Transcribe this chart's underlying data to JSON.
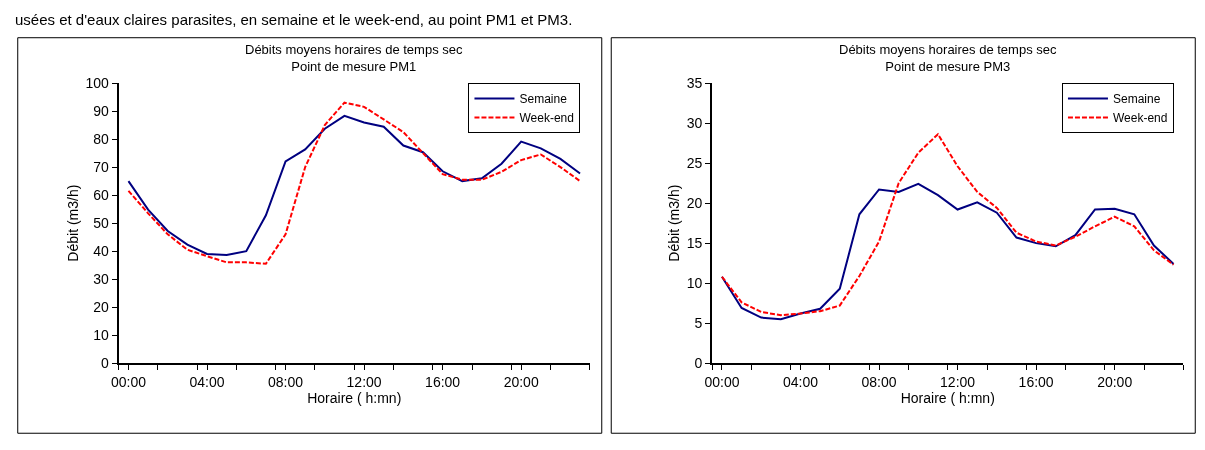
{
  "chart_data": [
    {
      "type": "line",
      "title": "Débits moyens horaires de temps sec\nPoint de mesure PM1",
      "xlabel": "Horaire ( h:mn)",
      "ylabel": "Débit (m3/h)",
      "annotations": [
        "usées et d'eaux claires parasites, en semaine et le week-end, au point PM1 et PM3."
      ],
      "x": [
        0,
        1,
        2,
        3,
        4,
        5,
        6,
        7,
        8,
        9,
        10,
        11,
        12,
        13,
        14,
        15,
        16,
        17,
        18,
        19,
        20,
        21,
        22,
        23
      ],
      "series": [
        {
          "name": "Semaine",
          "color": "#000080",
          "line_style": "solid",
          "values": [
            65,
            54.8,
            47.2,
            42.3,
            39,
            38.6,
            40,
            52.8,
            72,
            76.3,
            83.7,
            88.3,
            85.9,
            84.4,
            77.7,
            75.3,
            68.5,
            65,
            66,
            71.2,
            79.1,
            76.7,
            72.9,
            67.7
          ]
        },
        {
          "name": "Week-end",
          "color": "#ff0000",
          "line_style": "dashed",
          "values": [
            61.5,
            53.5,
            46,
            40.5,
            38.2,
            36,
            36,
            35.5,
            46,
            70,
            85,
            93,
            91.5,
            87,
            82.5,
            75,
            67.5,
            65.5,
            65.5,
            68.3,
            72.5,
            74.5,
            70,
            65
          ]
        }
      ],
      "xlim": [
        -0.5,
        23.5
      ],
      "xticks": [
        {
          "value": -0.5,
          "label": null
        },
        {
          "value": 0,
          "label": "00:00"
        },
        {
          "value": 1.5,
          "label": null
        },
        {
          "value": 3.5,
          "label": null
        },
        {
          "value": 4,
          "label": "04:00"
        },
        {
          "value": 5.5,
          "label": null
        },
        {
          "value": 7.5,
          "label": null
        },
        {
          "value": 8,
          "label": "08:00"
        },
        {
          "value": 9.5,
          "label": null
        },
        {
          "value": 11.5,
          "label": null
        },
        {
          "value": 12,
          "label": "12:00"
        },
        {
          "value": 13.5,
          "label": null
        },
        {
          "value": 15.5,
          "label": null
        },
        {
          "value": 16,
          "label": "16:00"
        },
        {
          "value": 17.5,
          "label": null
        },
        {
          "value": 19.5,
          "label": null
        },
        {
          "value": 20,
          "label": "20:00"
        },
        {
          "value": 21.5,
          "label": null
        },
        {
          "value": 23.5,
          "label": null
        }
      ],
      "ylim": [
        0,
        100
      ],
      "yticks": [
        0,
        10,
        20,
        30,
        40,
        50,
        60,
        70,
        80,
        90,
        100
      ],
      "grid": false,
      "legend": "top right",
      "marker": "none"
    },
    {
      "type": "line",
      "title": "Débits moyens horaires de temps sec\nPoint de mesure PM3",
      "xlabel": "Horaire ( h:mn)",
      "ylabel": "Débit (m3/h)",
      "x": [
        0,
        1,
        2,
        3,
        4,
        5,
        6,
        7,
        8,
        9,
        10,
        11,
        12,
        13,
        14,
        15,
        16,
        17,
        18,
        19,
        20,
        21,
        22,
        23
      ],
      "series": [
        {
          "name": "Semaine",
          "color": "#000080",
          "line_style": "solid",
          "values": [
            10.8,
            6.9,
            5.7,
            5.5,
            6.2,
            6.8,
            9.3,
            18.6,
            21.7,
            21.4,
            22.4,
            21.0,
            19.2,
            20.1,
            18.8,
            15.7,
            15.0,
            14.6,
            16.0,
            19.2,
            19.3,
            18.6,
            14.7,
            12.4
          ]
        },
        {
          "name": "Week-end",
          "color": "#ff0000",
          "line_style": "dashed",
          "values": [
            10.8,
            7.6,
            6.4,
            6.0,
            6.2,
            6.5,
            7.2,
            10.9,
            15.2,
            22.5,
            26.3,
            28.6,
            24.6,
            21.4,
            19.4,
            16.3,
            15.2,
            14.7,
            15.8,
            17.1,
            18.3,
            17.1,
            14.1,
            12.3
          ]
        }
      ],
      "xlim": [
        -0.5,
        23.5
      ],
      "xticks": [
        {
          "value": -0.5,
          "label": null
        },
        {
          "value": 0,
          "label": "00:00"
        },
        {
          "value": 1.5,
          "label": null
        },
        {
          "value": 3.5,
          "label": null
        },
        {
          "value": 4,
          "label": "04:00"
        },
        {
          "value": 5.5,
          "label": null
        },
        {
          "value": 7.5,
          "label": null
        },
        {
          "value": 8,
          "label": "08:00"
        },
        {
          "value": 9.5,
          "label": null
        },
        {
          "value": 11.5,
          "label": null
        },
        {
          "value": 12,
          "label": "12:00"
        },
        {
          "value": 13.5,
          "label": null
        },
        {
          "value": 15.5,
          "label": null
        },
        {
          "value": 16,
          "label": "16:00"
        },
        {
          "value": 17.5,
          "label": null
        },
        {
          "value": 19.5,
          "label": null
        },
        {
          "value": 20,
          "label": "20:00"
        },
        {
          "value": 21.5,
          "label": null
        },
        {
          "value": 23.5,
          "label": null
        }
      ],
      "ylim": [
        0,
        35
      ],
      "yticks": [
        0,
        5,
        10,
        15,
        20,
        25,
        30,
        35
      ],
      "grid": false,
      "legend": "top right",
      "marker": "none"
    }
  ]
}
